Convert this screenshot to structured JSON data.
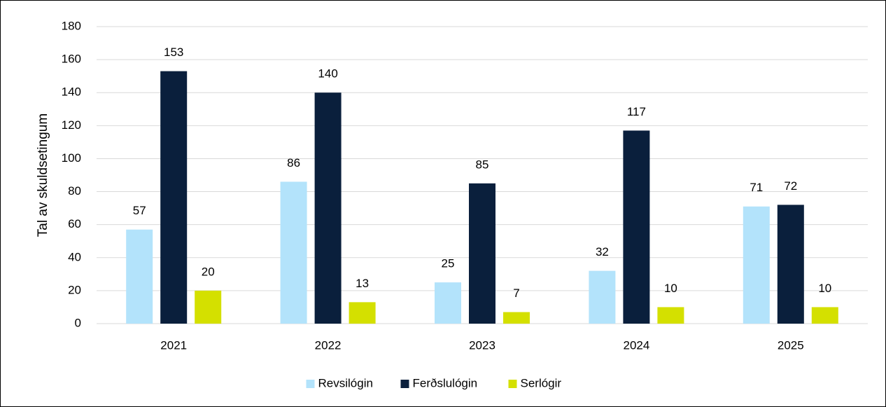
{
  "chart_data": {
    "type": "bar",
    "y_label": "Tal av skuldsetingum",
    "categories": [
      "2021",
      "2022",
      "2023",
      "2024",
      "2025"
    ],
    "series": [
      {
        "name": "Revsilógin",
        "color": "#b3e3fb",
        "values": [
          57,
          86,
          25,
          32,
          71
        ]
      },
      {
        "name": "Ferðslulógin",
        "color": "#0a1f3c",
        "values": [
          153,
          140,
          85,
          117,
          72
        ]
      },
      {
        "name": "Serlógir",
        "color": "#d4e000",
        "values": [
          20,
          13,
          7,
          10,
          10
        ]
      }
    ],
    "ylim": [
      0,
      180
    ],
    "yticks": [
      0,
      20,
      40,
      60,
      80,
      100,
      120,
      140,
      160,
      180
    ],
    "grid": true,
    "legend": "bottom"
  }
}
